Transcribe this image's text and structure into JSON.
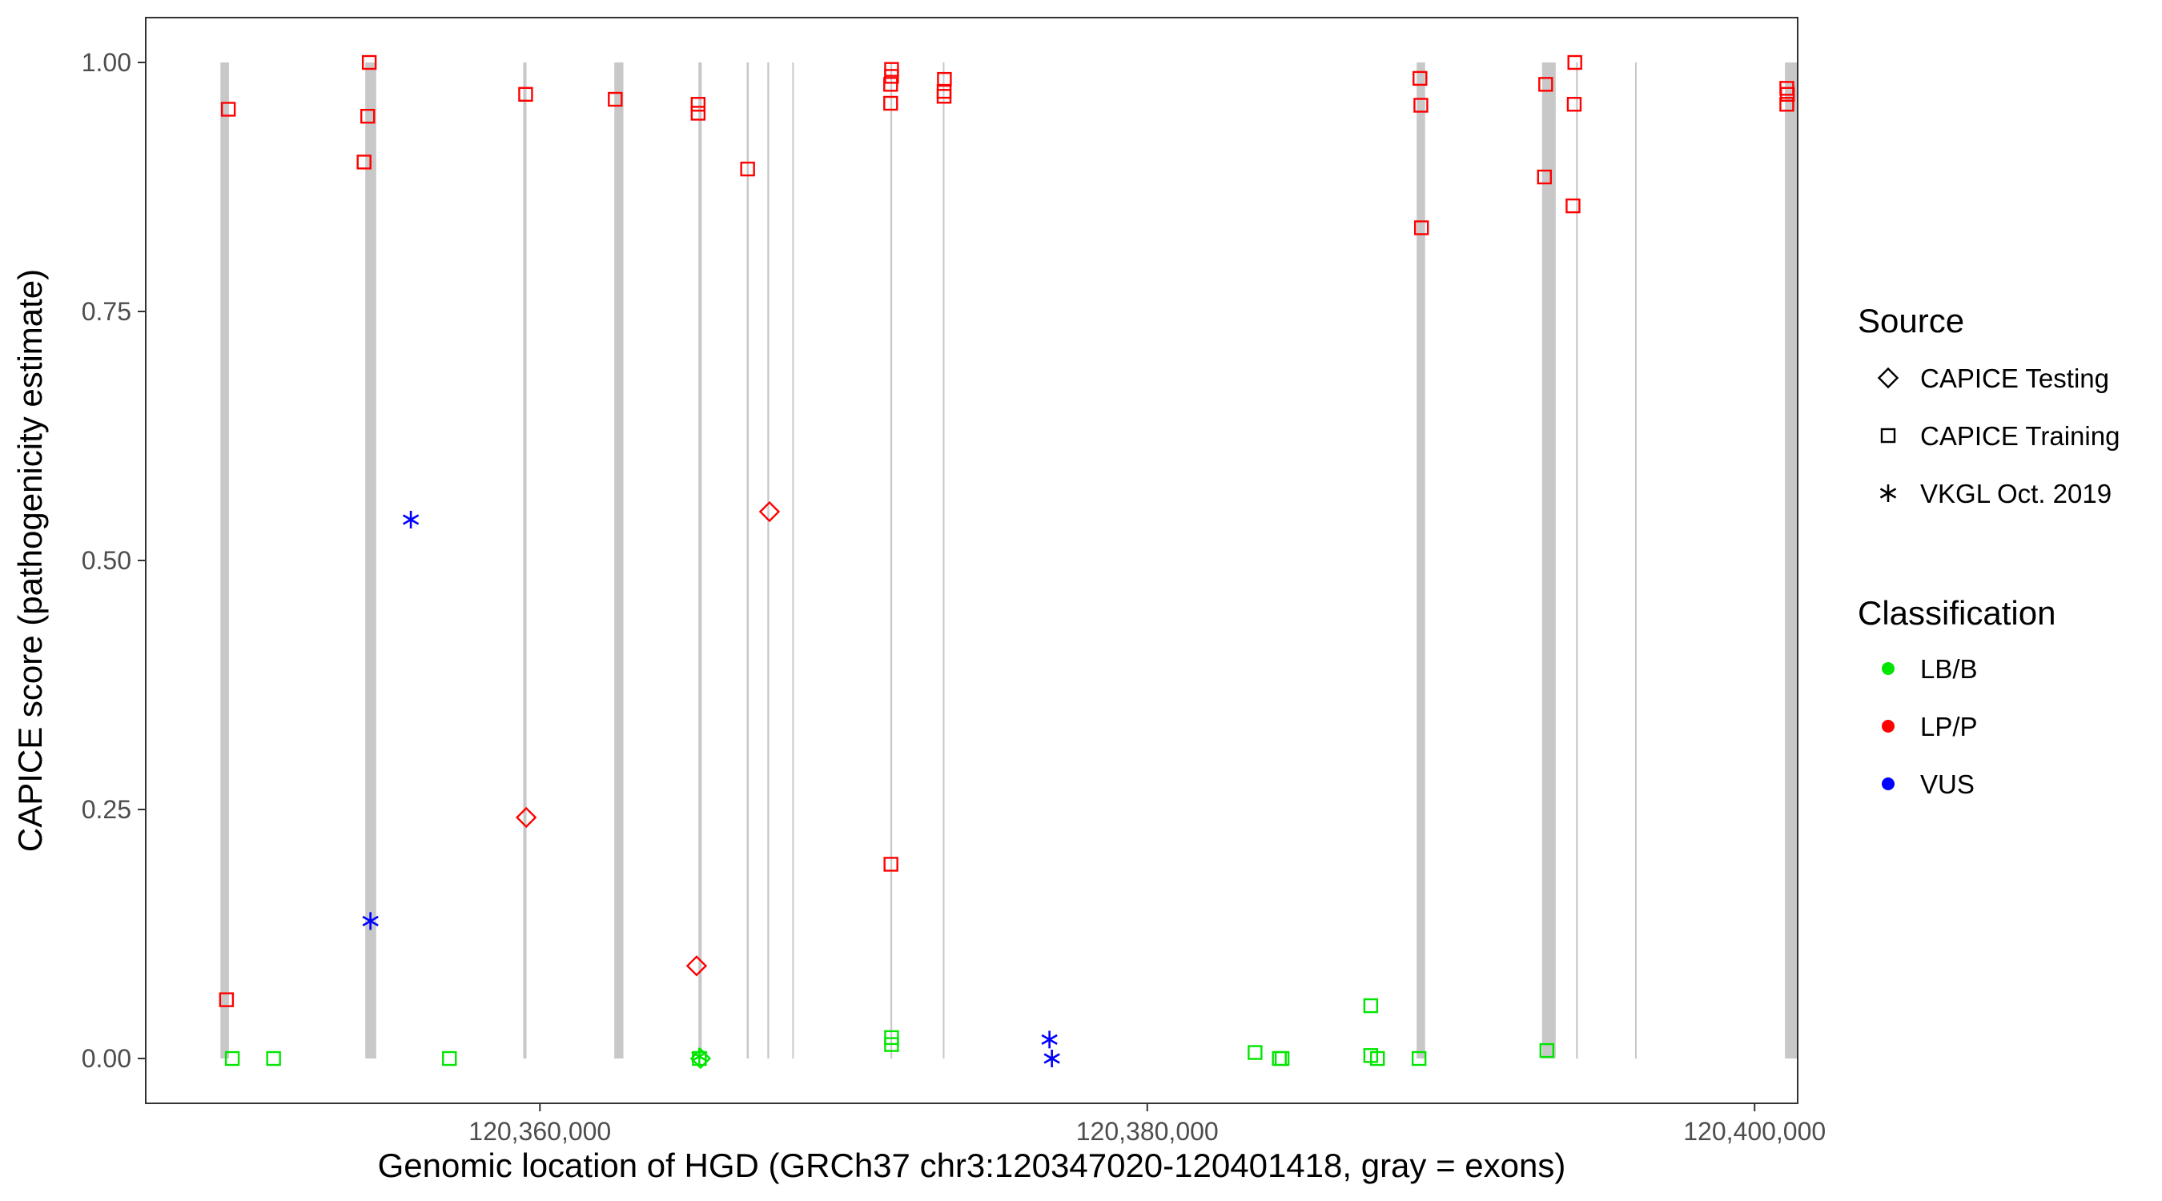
{
  "chart_data": {
    "type": "scatter",
    "title": "",
    "xlabel": "Genomic location of HGD (GRCh37 chr3:120347020-120401418, gray = exons)",
    "ylabel": "CAPICE score (pathogenicity estimate)",
    "xlim": [
      120347020,
      120401418
    ],
    "ylim": [
      -0.045,
      1.045
    ],
    "x_ticks": [
      {
        "value": 120360000,
        "label": "120,360,000"
      },
      {
        "value": 120380000,
        "label": "120,380,000"
      },
      {
        "value": 120400000,
        "label": "120,400,000"
      }
    ],
    "y_ticks": [
      {
        "value": 0.0,
        "label": "0.00"
      },
      {
        "value": 0.25,
        "label": "0.25"
      },
      {
        "value": 0.5,
        "label": "0.50"
      },
      {
        "value": 0.75,
        "label": "0.75"
      },
      {
        "value": 1.0,
        "label": "1.00"
      }
    ],
    "grid": false,
    "exon_color": "#c8c8c8",
    "exons": [
      [
        120349480,
        120349760
      ],
      [
        120354250,
        120354610
      ],
      [
        120359450,
        120359560
      ],
      [
        120362450,
        120362750
      ],
      [
        120365220,
        120365330
      ],
      [
        120366810,
        120366880
      ],
      [
        120367490,
        120367550
      ],
      [
        120368320,
        120368350
      ],
      [
        120371540,
        120371600
      ],
      [
        120373270,
        120373320
      ],
      [
        120388870,
        120389150
      ],
      [
        120393000,
        120393450
      ],
      [
        120394120,
        120394180
      ],
      [
        120396070,
        120396110
      ],
      [
        120401000,
        120401418
      ]
    ],
    "legend": {
      "position": "right",
      "source_title": "Source",
      "source_items": [
        {
          "label": "CAPICE Testing",
          "shape": "diamond"
        },
        {
          "label": "CAPICE Training",
          "shape": "square"
        },
        {
          "label": "VKGL Oct. 2019",
          "shape": "asterisk"
        }
      ],
      "class_title": "Classification",
      "class_items": [
        {
          "label": "LB/B",
          "color": "#00e600"
        },
        {
          "label": "LP/P",
          "color": "#ff0000"
        },
        {
          "label": "VUS",
          "color": "#0000ff"
        }
      ]
    },
    "colors": {
      "LB/B": "#00e600",
      "LP/P": "#ff0000",
      "VUS": "#0000ff"
    },
    "series": [
      {
        "source": "CAPICE Training",
        "classification": "LP/P",
        "points": [
          [
            120349740,
            0.953
          ],
          [
            120349680,
            0.059
          ],
          [
            120354380,
            1.0
          ],
          [
            120354330,
            0.946
          ],
          [
            120354210,
            0.9
          ],
          [
            120359530,
            0.968
          ],
          [
            120362480,
            0.963
          ],
          [
            120365210,
            0.958
          ],
          [
            120365210,
            0.949
          ],
          [
            120366840,
            0.893
          ],
          [
            120371580,
            0.993
          ],
          [
            120371580,
            0.986
          ],
          [
            120371550,
            0.978
          ],
          [
            120371550,
            0.959
          ],
          [
            120371560,
            0.195
          ],
          [
            120373320,
            0.983
          ],
          [
            120373310,
            0.971
          ],
          [
            120373310,
            0.966
          ],
          [
            120388980,
            0.984
          ],
          [
            120389010,
            0.957
          ],
          [
            120389030,
            0.834
          ],
          [
            120393120,
            0.978
          ],
          [
            120393080,
            0.885
          ],
          [
            120394080,
            1.0
          ],
          [
            120394060,
            0.958
          ],
          [
            120394020,
            0.856
          ],
          [
            120401060,
            0.974
          ],
          [
            120401080,
            0.968
          ],
          [
            120401060,
            0.958
          ]
        ]
      },
      {
        "source": "CAPICE Training",
        "classification": "LB/B",
        "points": [
          [
            120349870,
            0.0
          ],
          [
            120351230,
            0.0
          ],
          [
            120357020,
            0.0
          ],
          [
            120365250,
            0.0
          ],
          [
            120371580,
            0.021
          ],
          [
            120371580,
            0.014
          ],
          [
            120383550,
            0.006
          ],
          [
            120384350,
            0.0
          ],
          [
            120384440,
            0.0
          ],
          [
            120387360,
            0.053
          ],
          [
            120387360,
            0.003
          ],
          [
            120387580,
            0.0
          ],
          [
            120388950,
            0.0
          ],
          [
            120393160,
            0.008
          ]
        ]
      },
      {
        "source": "CAPICE Testing",
        "classification": "LP/P",
        "points": [
          [
            120359550,
            0.242
          ],
          [
            120365160,
            0.093
          ],
          [
            120367560,
            0.549
          ]
        ]
      },
      {
        "source": "CAPICE Testing",
        "classification": "LB/B",
        "points": [
          [
            120365290,
            0.0
          ]
        ]
      },
      {
        "source": "VKGL Oct. 2019",
        "classification": "VUS",
        "points": [
          [
            120355750,
            0.541
          ],
          [
            120354420,
            0.138
          ],
          [
            120376780,
            0.019
          ],
          [
            120376860,
            0.0
          ]
        ]
      },
      {
        "source": "VKGL Oct. 2019",
        "classification": "LB/B",
        "points": [
          [
            120365250,
            0.002
          ]
        ]
      }
    ]
  }
}
